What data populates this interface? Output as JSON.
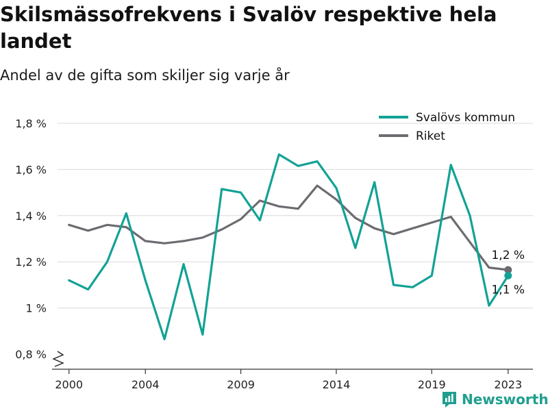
{
  "header": {
    "title": "Skilsmässofrekvens i Svalöv respektive hela landet",
    "subtitle": "Andel av de gifta som skiljer sig varje år"
  },
  "brand": {
    "name": "Newsworthy"
  },
  "colors": {
    "svalov": "#12a295",
    "riket": "#6d6b70",
    "grid": "#d9d9d9",
    "axis": "#333333"
  },
  "chart_data": {
    "type": "line",
    "title": "Skilsmässofrekvens i Svalöv respektive hela landet",
    "subtitle": "Andel av de gifta som skiljer sig varje år",
    "x": [
      2000,
      2001,
      2002,
      2003,
      2004,
      2005,
      2006,
      2007,
      2008,
      2009,
      2010,
      2011,
      2012,
      2013,
      2014,
      2015,
      2016,
      2017,
      2018,
      2019,
      2020,
      2021,
      2022,
      2023
    ],
    "xticks": [
      2000,
      2004,
      2009,
      2014,
      2019,
      2023
    ],
    "xtick_labels": [
      "2000",
      "2004",
      "2009",
      "2014",
      "2019",
      "2023"
    ],
    "yticks": [
      0.8,
      1.0,
      1.2,
      1.4,
      1.6,
      1.8
    ],
    "ytick_labels": [
      "0,8 %",
      "1 %",
      "1,2 %",
      "1,4 %",
      "1,6 %",
      "1,8 %"
    ],
    "ylim": [
      0.8,
      1.8
    ],
    "xlim": [
      1999.4,
      2024.3
    ],
    "grid": true,
    "legend_position": "top-right",
    "series": [
      {
        "name": "Svalövs kommun",
        "color": "#12a295",
        "values": [
          1.12,
          1.08,
          1.2,
          1.41,
          1.12,
          0.865,
          1.19,
          0.885,
          1.515,
          1.5,
          1.38,
          1.665,
          1.615,
          1.635,
          1.52,
          1.26,
          1.545,
          1.1,
          1.09,
          1.14,
          1.62,
          1.4,
          1.01,
          1.14
        ],
        "end_label": "1,1 %"
      },
      {
        "name": "Riket",
        "color": "#6d6b70",
        "values": [
          1.36,
          1.335,
          1.36,
          1.35,
          1.29,
          1.28,
          1.29,
          1.305,
          1.34,
          1.385,
          1.465,
          1.44,
          1.43,
          1.53,
          1.47,
          1.39,
          1.345,
          1.32,
          1.345,
          1.37,
          1.395,
          1.285,
          1.175,
          1.165
        ],
        "end_label": "1,2 %"
      }
    ]
  }
}
